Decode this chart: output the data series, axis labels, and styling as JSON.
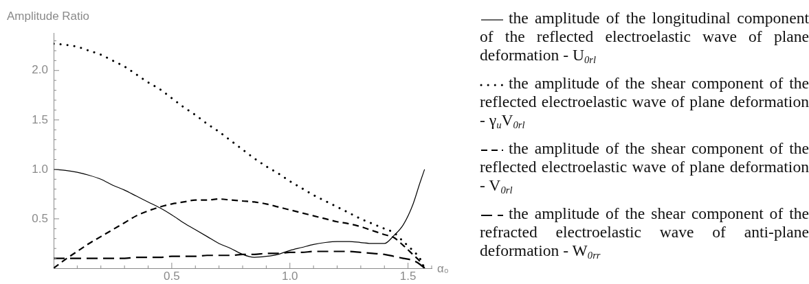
{
  "chart_data": {
    "type": "line",
    "ylabel": "Amplitude Ratio",
    "xlabel": "α₀",
    "xlim": [
      0,
      1.6
    ],
    "ylim": [
      0,
      2.38
    ],
    "xticks": [
      {
        "value": 0.1,
        "label": null
      },
      {
        "value": 0.2,
        "label": null
      },
      {
        "value": 0.3,
        "label": null
      },
      {
        "value": 0.4,
        "label": null
      },
      0.5,
      {
        "value": 0.6,
        "label": null
      },
      {
        "value": 0.7,
        "label": null
      },
      {
        "value": 0.8,
        "label": null
      },
      {
        "value": 0.9,
        "label": null
      },
      {
        "value": 1,
        "label": "1.0"
      },
      {
        "value": 1.1,
        "label": null
      },
      {
        "value": 1.2,
        "label": null
      },
      {
        "value": 1.3,
        "label": null
      },
      {
        "value": 1.4,
        "label": null
      },
      1.5,
      {
        "value": 1.6,
        "label": null
      }
    ],
    "yticks": [
      {
        "value": 0.1,
        "label": null
      },
      {
        "value": 0.2,
        "label": null
      },
      {
        "value": 0.3,
        "label": null
      },
      {
        "value": 0.4,
        "label": null
      },
      0.5,
      {
        "value": 0.6,
        "label": null
      },
      {
        "value": 0.7,
        "label": null
      },
      {
        "value": 0.8,
        "label": null
      },
      {
        "value": 0.9,
        "label": null
      },
      {
        "value": 1,
        "label": "1.0"
      },
      {
        "value": 1.1,
        "label": null
      },
      {
        "value": 1.2,
        "label": null
      },
      {
        "value": 1.3,
        "label": null
      },
      {
        "value": 1.4,
        "label": null
      },
      1.5,
      {
        "value": 1.6,
        "label": null
      },
      {
        "value": 1.7,
        "label": null
      },
      {
        "value": 1.8,
        "label": null
      },
      {
        "value": 1.9,
        "label": null
      },
      {
        "value": 2,
        "label": "2.0"
      },
      {
        "value": 2.1,
        "label": null
      },
      {
        "value": 2.2,
        "label": null
      },
      {
        "value": 2.3,
        "label": null
      }
    ],
    "legend": "right",
    "x": [
      0,
      0.05,
      0.1,
      0.15,
      0.2,
      0.25,
      0.3,
      0.35,
      0.4,
      0.45,
      0.5,
      0.55,
      0.6,
      0.65,
      0.7,
      0.75,
      0.8,
      0.85,
      0.9,
      0.95,
      1,
      1.05,
      1.1,
      1.15,
      1.2,
      1.25,
      1.3,
      1.35,
      1.4,
      1.44,
      1.48,
      1.52,
      1.55,
      1.57
    ],
    "series": [
      {
        "name": "the amplitude of the longitudinal component of the reflected electroelastic wave of plane deformation - U$_{0rl}$",
        "color": "#000000",
        "line_style": "solid",
        "values": [
          1.0,
          0.99,
          0.97,
          0.94,
          0.9,
          0.84,
          0.79,
          0.73,
          0.67,
          0.61,
          0.54,
          0.46,
          0.39,
          0.32,
          0.25,
          0.2,
          0.14,
          0.11,
          0.12,
          0.14,
          0.18,
          0.21,
          0.24,
          0.26,
          0.27,
          0.27,
          0.26,
          0.25,
          0.25,
          0.33,
          0.44,
          0.64,
          0.86,
          1.0
        ]
      },
      {
        "name": "the amplitude of the shear component of the reflected electroelastic wave of plane deformation - γ$_{u}$V$_{0rl}$",
        "color": "#000000",
        "line_style": "dotted",
        "values": [
          2.27,
          2.26,
          2.24,
          2.2,
          2.16,
          2.1,
          2.04,
          1.96,
          1.88,
          1.81,
          1.72,
          1.63,
          1.55,
          1.46,
          1.38,
          1.29,
          1.2,
          1.11,
          1.03,
          0.96,
          0.88,
          0.81,
          0.74,
          0.68,
          0.62,
          0.56,
          0.5,
          0.45,
          0.4,
          0.36,
          0.27,
          0.18,
          0.1,
          0.0
        ]
      },
      {
        "name": "the amplitude of the shear component of the reflected electroelastic wave of plane deformation - V$_{0rl}$",
        "color": "#000000",
        "line_style": "dashed",
        "values": [
          0.0,
          0.09,
          0.17,
          0.25,
          0.32,
          0.39,
          0.46,
          0.53,
          0.58,
          0.62,
          0.65,
          0.67,
          0.69,
          0.69,
          0.7,
          0.69,
          0.68,
          0.67,
          0.65,
          0.62,
          0.59,
          0.56,
          0.53,
          0.5,
          0.47,
          0.45,
          0.42,
          0.38,
          0.34,
          0.31,
          0.23,
          0.14,
          0.07,
          0.0
        ]
      },
      {
        "name": "the amplitude of the shear component of the refracted electroelastic wave of anti-plane deformation - W$_{0rr}$",
        "color": "#000000",
        "line_style": "dashed",
        "values": [
          0.1,
          0.1,
          0.1,
          0.1,
          0.1,
          0.1,
          0.1,
          0.11,
          0.11,
          0.11,
          0.12,
          0.12,
          0.12,
          0.13,
          0.13,
          0.13,
          0.14,
          0.14,
          0.15,
          0.15,
          0.16,
          0.16,
          0.17,
          0.17,
          0.17,
          0.17,
          0.16,
          0.15,
          0.14,
          0.12,
          0.1,
          0.08,
          0.04,
          0.0
        ]
      }
    ]
  }
}
